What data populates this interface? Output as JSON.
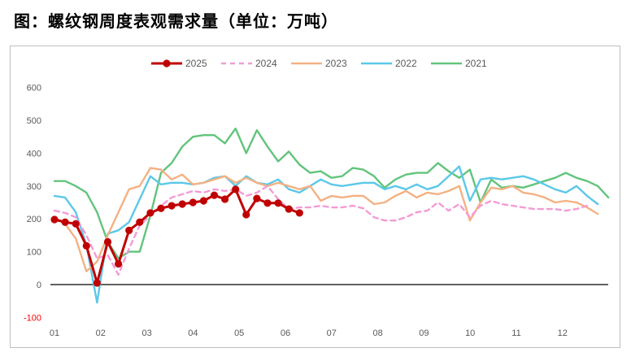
{
  "chart_data": {
    "type": "line",
    "title": "图：螺纹钢周度表观需求量（单位：万吨）",
    "ylim": [
      -100,
      600
    ],
    "yticks": [
      600,
      500,
      400,
      300,
      200,
      100,
      0,
      -100
    ],
    "xticks": [
      "01",
      "02",
      "03",
      "04",
      "05",
      "06",
      "07",
      "08",
      "09",
      "10",
      "11",
      "12"
    ],
    "negative_tick_color": "#ff0000",
    "grid": false,
    "legend": "top",
    "series": [
      {
        "name": "2025",
        "color": "#c00000",
        "line_style": "solid",
        "marker": "circle",
        "values": [
          198,
          190,
          185,
          118,
          5,
          130,
          63,
          165,
          190,
          218,
          232,
          240,
          245,
          250,
          255,
          272,
          260,
          290,
          213,
          262,
          248,
          248,
          230,
          218
        ]
      },
      {
        "name": "2024",
        "color": "#f49bd6",
        "line_style": "dashed",
        "values": [
          225,
          218,
          205,
          150,
          80,
          90,
          30,
          110,
          180,
          210,
          240,
          265,
          275,
          285,
          280,
          290,
          285,
          290,
          270,
          280,
          300,
          260,
          230,
          235,
          235,
          240,
          235,
          235,
          240,
          232,
          205,
          195,
          195,
          205,
          220,
          225,
          250,
          225,
          245,
          205,
          240,
          255,
          245,
          240,
          235,
          230,
          230,
          230,
          225,
          230,
          240
        ]
      },
      {
        "name": "2023",
        "color": "#f4b183",
        "line_style": "solid",
        "values": [
          205,
          185,
          140,
          40,
          70,
          150,
          220,
          290,
          300,
          355,
          350,
          320,
          335,
          305,
          310,
          320,
          330,
          310,
          325,
          310,
          300,
          310,
          300,
          290,
          300,
          255,
          270,
          265,
          270,
          270,
          245,
          250,
          270,
          285,
          265,
          280,
          275,
          285,
          300,
          195,
          250,
          295,
          290,
          300,
          280,
          275,
          265,
          250,
          255,
          250,
          235,
          215
        ]
      },
      {
        "name": "2022",
        "color": "#5bc8e8",
        "line_style": "solid",
        "values": [
          270,
          265,
          220,
          120,
          -55,
          155,
          165,
          190,
          260,
          330,
          305,
          310,
          310,
          305,
          310,
          325,
          330,
          300,
          330,
          310,
          305,
          320,
          290,
          280,
          300,
          320,
          305,
          300,
          305,
          310,
          310,
          290,
          300,
          290,
          305,
          290,
          300,
          330,
          360,
          255,
          320,
          325,
          320,
          325,
          330,
          320,
          305,
          290,
          280,
          300,
          270,
          245
        ]
      },
      {
        "name": "2021",
        "color": "#62c47c",
        "line_style": "solid",
        "values": [
          315,
          315,
          300,
          280,
          220,
          130,
          80,
          100,
          100,
          210,
          340,
          370,
          420,
          450,
          455,
          455,
          430,
          475,
          400,
          470,
          420,
          375,
          405,
          365,
          340,
          345,
          325,
          330,
          355,
          350,
          330,
          295,
          320,
          335,
          340,
          340,
          370,
          345,
          325,
          350,
          250,
          320,
          295,
          300,
          295,
          305,
          315,
          325,
          340,
          325,
          315,
          300,
          265
        ]
      }
    ]
  }
}
